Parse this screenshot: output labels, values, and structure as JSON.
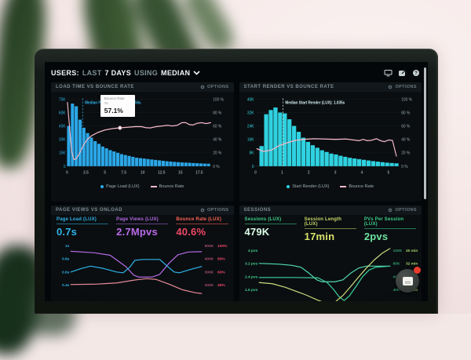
{
  "header": {
    "prefix": "USERS:",
    "segment_last": "LAST",
    "segment_days": "7 DAYS",
    "segment_using": "USING",
    "segment_median": "MEDIAN"
  },
  "panels": {
    "load_time": {
      "title": "LOAD TIME VS BOUNCE RATE",
      "options": "OPTIONS",
      "tooltip": {
        "label": "Bounce Rate",
        "x": "7s",
        "value": "57.1%"
      },
      "legend": [
        {
          "label": "Page Load (LUX)"
        },
        {
          "label": "Bounce Rate"
        }
      ]
    },
    "start_render": {
      "title": "START RENDER VS BOUNCE RATE",
      "options": "OPTIONS",
      "legend": [
        {
          "label": "Start Render (LUX)"
        },
        {
          "label": "Bounce Rate"
        }
      ]
    },
    "pageviews": {
      "title": "PAGE VIEWS VS ONLOAD",
      "options": "OPTIONS",
      "metrics": [
        {
          "label": "Page Load (LUX)",
          "value": "0.7s",
          "label_color": "#2fb3e8",
          "color": "#2fb3e8"
        },
        {
          "label": "Page Views (LUX)",
          "value": "2.7Mpvs",
          "label_color": "#b36ae2",
          "color": "#bb6ae8"
        },
        {
          "label": "Bounce Rate (LUX)",
          "value": "40.6%",
          "label_color": "#ff6455",
          "color": "#f04866"
        }
      ]
    },
    "sessions": {
      "title": "SESSIONS",
      "options": "OPTIONS",
      "metrics": [
        {
          "label": "Sessions (LUX)",
          "value": "479K",
          "label_color": "#3ecf8a",
          "color": "#dcffe9"
        },
        {
          "label": "Session Length (LUX)",
          "value": "17min",
          "label_color": "#cdd76a",
          "color": "#d8e36a"
        },
        {
          "label": "PVs Per Session (LUX)",
          "value": "2pvs",
          "label_color": "#3ecf8a",
          "color": "#6fe3a0"
        }
      ]
    }
  },
  "chart_data": [
    {
      "id": "load_time",
      "type": "bar",
      "title": "LOAD TIME VS BOUNCE RATE",
      "x_ticks": [
        "0",
        "2.5",
        "5",
        "7.5",
        "10",
        "12.5",
        "15",
        "17.5"
      ],
      "x_tick_values": [
        0,
        2.5,
        5,
        7.5,
        10,
        12.5,
        15,
        17.5
      ],
      "x_max": 19,
      "y_left": {
        "ticks": [
          "75K",
          "60K",
          "45K",
          "30K",
          "15K",
          "0"
        ],
        "max_k": 75,
        "color": "#2fb3e8"
      },
      "y_right": {
        "ticks": [
          "100 %",
          "80 %",
          "60 %",
          "40 %",
          "20 %",
          "0 %"
        ],
        "max": 100,
        "color": "#9aa7ab"
      },
      "bars": {
        "name": "Page Load (LUX)",
        "color": "#2ba7e8",
        "start": 0,
        "step": 0.5,
        "values_k": [
          45,
          70,
          67,
          52,
          43,
          37,
          32,
          28,
          25,
          22,
          20,
          18,
          16.5,
          15,
          13.5,
          12.5,
          11.5,
          10.5,
          9.5,
          9,
          8.5,
          8,
          7.5,
          7,
          6.5,
          6,
          5.5,
          5.2,
          4.8,
          4.5,
          4.2,
          4,
          3.8,
          3.5,
          3.3,
          3.1,
          2.9,
          2.8
        ]
      },
      "line": {
        "name": "Bounce Rate",
        "color": "#f3b8c6",
        "points": [
          [
            0.05,
            95
          ],
          [
            0.3,
            62
          ],
          [
            0.6,
            22
          ],
          [
            0.9,
            10
          ],
          [
            1.2,
            11
          ],
          [
            1.6,
            18
          ],
          [
            2.1,
            30
          ],
          [
            2.6,
            39
          ],
          [
            3.2,
            45
          ],
          [
            4,
            50
          ],
          [
            5,
            54
          ],
          [
            6,
            56
          ],
          [
            7,
            57.1
          ],
          [
            8,
            58
          ],
          [
            9,
            59
          ],
          [
            9.8,
            59
          ],
          [
            10.4,
            57.5
          ],
          [
            11,
            57
          ],
          [
            11.8,
            59
          ],
          [
            12.6,
            60
          ],
          [
            13.3,
            61
          ],
          [
            13.9,
            60
          ],
          [
            14.6,
            61
          ],
          [
            15.2,
            65
          ],
          [
            15.7,
            65
          ],
          [
            16.2,
            62
          ],
          [
            16.7,
            61.5
          ],
          [
            17.2,
            64
          ],
          [
            17.8,
            65
          ],
          [
            18.4,
            63.5
          ],
          [
            19,
            65
          ]
        ]
      },
      "median": {
        "x": 2.056,
        "label": "Median Page Load (LUX): 2.056s",
        "color": "#2fb3e8"
      },
      "marker": {
        "x": 7,
        "y": 57.1
      }
    },
    {
      "id": "start_render",
      "type": "bar",
      "title": "START RENDER VS BOUNCE RATE",
      "x_ticks": [
        "0",
        "1",
        "2",
        "3",
        "4",
        "5"
      ],
      "x_tick_values": [
        0,
        1,
        2,
        3,
        4,
        5
      ],
      "x_max": 5.4,
      "y_left": {
        "ticks": [
          "40K",
          "32K",
          "24K",
          "16K",
          "8K",
          "0"
        ],
        "max_k": 40,
        "color": "#35d6e0"
      },
      "y_right": {
        "ticks": [
          "100 %",
          "80 %",
          "60 %",
          "40 %",
          "20 %",
          "0 %"
        ],
        "max": 100,
        "color": "#9aa7ab"
      },
      "bars": {
        "name": "Start Render (LUX)",
        "color": "#2fd2e0",
        "start": 0.15,
        "step": 0.175,
        "values_k": [
          12,
          31,
          33.5,
          35,
          32,
          31.5,
          28,
          24,
          20.5,
          17,
          14.5,
          12.5,
          11,
          9.5,
          8.5,
          7.5,
          7,
          6.2,
          5.6,
          5,
          4.6,
          4.2,
          3.8,
          3.4,
          3,
          2.7,
          2.4,
          2.1,
          1.9,
          1.7
        ]
      },
      "line": {
        "name": "Bounce Rate",
        "color": "#f3b8c6",
        "points": [
          [
            0.05,
            26
          ],
          [
            0.3,
            22
          ],
          [
            0.6,
            24
          ],
          [
            0.9,
            31
          ],
          [
            1.2,
            35
          ],
          [
            1.5,
            38.5
          ],
          [
            1.8,
            40
          ],
          [
            2.2,
            41
          ],
          [
            2.6,
            40.5
          ],
          [
            3,
            40
          ],
          [
            3.4,
            40.5
          ],
          [
            3.7,
            39
          ],
          [
            3.9,
            38
          ],
          [
            4.05,
            40
          ],
          [
            4.2,
            38
          ],
          [
            4.35,
            38.5
          ],
          [
            4.55,
            41
          ],
          [
            4.7,
            38
          ],
          [
            4.85,
            36.5
          ],
          [
            5,
            39
          ],
          [
            5.15,
            38.5
          ],
          [
            5.3,
            15
          ]
        ]
      },
      "median": {
        "x": 1.035,
        "label": "Median Start Render (LUX): 1.035s",
        "color": "#d4eef2"
      }
    },
    {
      "id": "pageviews",
      "type": "line",
      "title": "PAGE VIEWS VS ONLOAD",
      "y_left": {
        "ticks": [
          "1s",
          "0.8s",
          "0.6s",
          "0.4s"
        ],
        "color": "#2fb3e8"
      },
      "y_right": {
        "cols": [
          [
            "500K",
            "400K",
            "300K",
            "200K"
          ],
          [
            "100%",
            "80%",
            "60%",
            "40%"
          ]
        ],
        "colors": [
          "#a8506e",
          "#f1496b"
        ]
      },
      "series": [
        {
          "name": "Page Views (LUX)",
          "color": "#b36ae2",
          "points": [
            [
              0,
              0.86
            ],
            [
              18,
              0.82
            ],
            [
              30,
              0.76
            ],
            [
              42,
              0.47
            ],
            [
              48,
              0.25
            ],
            [
              52,
              0.2
            ],
            [
              62,
              0.2
            ],
            [
              68,
              0.27
            ],
            [
              75,
              0.55
            ],
            [
              82,
              0.77
            ],
            [
              90,
              0.84
            ],
            [
              100,
              0.85
            ]
          ]
        },
        {
          "name": "Page Load (LUX)",
          "color": "#2fb3e8",
          "points": [
            [
              0,
              0.33
            ],
            [
              8,
              0.42
            ],
            [
              15,
              0.48
            ],
            [
              25,
              0.42
            ],
            [
              35,
              0.33
            ],
            [
              40,
              0.31
            ],
            [
              45,
              0.45
            ],
            [
              49,
              0.63
            ],
            [
              55,
              0.65
            ],
            [
              68,
              0.65
            ],
            [
              73,
              0.5
            ],
            [
              79,
              0.33
            ],
            [
              83,
              0.31
            ],
            [
              92,
              0.4
            ],
            [
              100,
              0.47
            ]
          ]
        },
        {
          "name": "Bounce Rate (LUX)",
          "color": "#e58a96",
          "points": [
            [
              0,
              0.01
            ],
            [
              20,
              0.02
            ],
            [
              35,
              0.05
            ],
            [
              50,
              0.13
            ],
            [
              58,
              0.16
            ],
            [
              65,
              0.14
            ],
            [
              75,
              0.02
            ],
            [
              85,
              -0.12
            ],
            [
              95,
              -0.2
            ],
            [
              100,
              -0.22
            ]
          ]
        }
      ]
    },
    {
      "id": "sessions",
      "type": "line",
      "title": "SESSIONS",
      "y_left": {
        "ticks": [
          "4 pvs",
          "3.2 pvs",
          "2.4 pvs",
          "1.6 pvs"
        ],
        "color": "#3ecf8a"
      },
      "y_right": {
        "cols": [
          [
            "100K",
            "80K",
            "60K",
            "40K"
          ],
          [
            "40 min",
            "32 min",
            "24 min",
            "16 min"
          ]
        ],
        "colors": [
          "#2f9e6d",
          "#a9d96a"
        ]
      },
      "series": [
        {
          "name": "PVs Per Session (LUX)",
          "color": "#52d9ad",
          "points": [
            [
              0,
              0.67
            ],
            [
              15,
              0.65
            ],
            [
              25,
              0.62
            ],
            [
              32,
              0.57
            ],
            [
              38,
              0.42
            ],
            [
              44,
              0.25
            ],
            [
              48,
              0.2
            ],
            [
              58,
              0.2
            ],
            [
              64,
              0.25
            ],
            [
              70,
              0.42
            ],
            [
              76,
              0.55
            ],
            [
              82,
              0.6
            ],
            [
              100,
              0.6
            ]
          ]
        },
        {
          "name": "Sessions (LUX)",
          "color": "#3ecf9a",
          "points": [
            [
              0,
              0.31
            ],
            [
              25,
              0.31
            ],
            [
              45,
              0.3
            ],
            [
              52,
              0.18
            ],
            [
              57,
              0.0
            ],
            [
              61,
              -0.18
            ],
            [
              65,
              -0.28
            ],
            [
              69,
              -0.16
            ],
            [
              74,
              0.08
            ],
            [
              79,
              0.33
            ],
            [
              84,
              0.5
            ],
            [
              89,
              0.57
            ],
            [
              100,
              0.6
            ]
          ]
        },
        {
          "name": "Session Length (LUX)",
          "color": "#ccd97a",
          "points": [
            [
              0,
              0.18
            ],
            [
              10,
              0.15
            ],
            [
              20,
              0.06
            ],
            [
              28,
              -0.04
            ],
            [
              36,
              -0.14
            ],
            [
              44,
              -0.26
            ],
            [
              52,
              -0.36
            ],
            [
              58,
              -0.32
            ],
            [
              64,
              -0.15
            ],
            [
              70,
              0.08
            ],
            [
              76,
              0.32
            ],
            [
              82,
              0.55
            ],
            [
              88,
              0.76
            ],
            [
              94,
              0.93
            ],
            [
              100,
              1.05
            ]
          ]
        }
      ]
    }
  ]
}
